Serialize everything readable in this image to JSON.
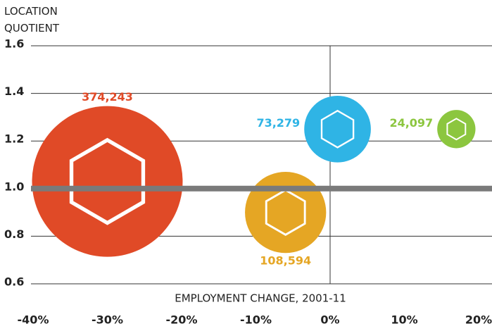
{
  "chart_data": {
    "type": "bubble",
    "ylabel": [
      "LOCATION",
      "QUOTIENT"
    ],
    "xlabel": "EMPLOYMENT CHANGE, 2001-11",
    "x": [
      -30,
      -6,
      1,
      17
    ],
    "values": [
      1.03,
      0.9,
      1.25,
      1.25
    ],
    "sizes": [
      374243,
      108594,
      73279,
      24097
    ],
    "value_labels": [
      "374,243",
      "108,594",
      "73,279",
      "24,097"
    ],
    "colors": [
      "#e04a27",
      "#e5a624",
      "#2fb4e5",
      "#8cc63f"
    ],
    "xlim": [
      -40,
      20
    ],
    "ylim": [
      0.6,
      1.6
    ],
    "xticks": [
      {
        "value": -40,
        "label": "-40%"
      },
      {
        "value": -30,
        "label": "-30%"
      },
      {
        "value": -20,
        "label": "-20%"
      },
      {
        "value": -10,
        "label": "-10%"
      },
      {
        "value": 0,
        "label": "0%"
      },
      {
        "value": 10,
        "label": "10%"
      },
      {
        "value": 20,
        "label": "20%"
      }
    ],
    "yticks": [
      0.6,
      0.8,
      {
        "value": 1.0,
        "label": "1.0"
      },
      1.2,
      1.4,
      1.6
    ],
    "reference_y": 1.0,
    "reference_x": 0,
    "grid": true
  }
}
